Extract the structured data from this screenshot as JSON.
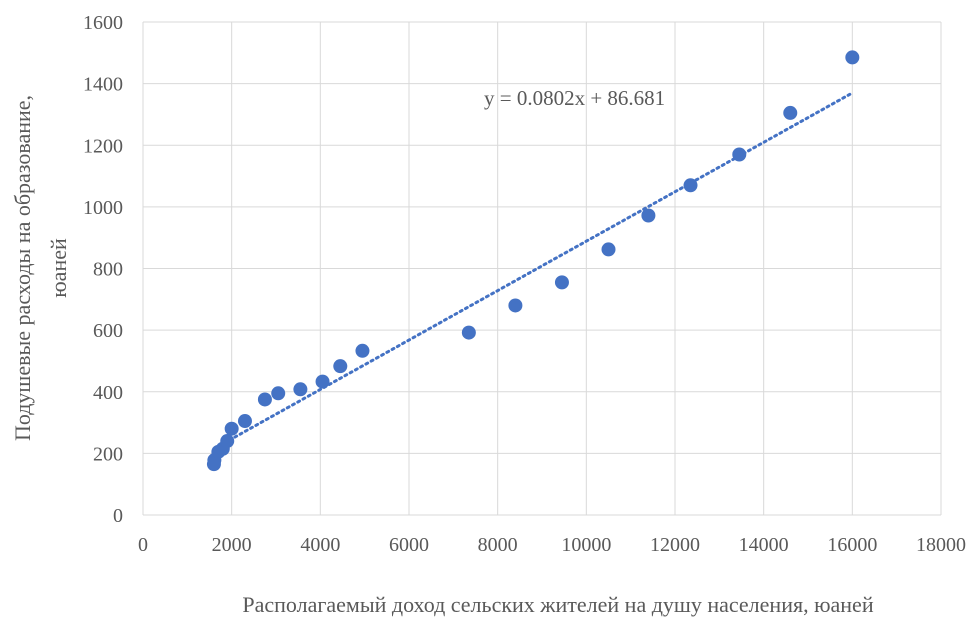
{
  "chart_data": {
    "type": "scatter",
    "title": "",
    "xlabel": "Располагаемый доход сельских жителей на душу населения, юаней",
    "ylabel_lines": [
      "Подушевые расходы на образование,",
      "юаней"
    ],
    "xlim": [
      0,
      18000
    ],
    "ylim": [
      0,
      1600
    ],
    "x_ticks": [
      0,
      2000,
      4000,
      6000,
      8000,
      10000,
      12000,
      14000,
      16000,
      18000
    ],
    "y_ticks": [
      0,
      200,
      400,
      600,
      800,
      1000,
      1200,
      1400,
      1600
    ],
    "grid": true,
    "legend": "none",
    "marker_color": "#4472C4",
    "trendline_color": "#4472C4",
    "series": [
      {
        "points": [
          {
            "x": 1600,
            "y": 165
          },
          {
            "x": 1610,
            "y": 178
          },
          {
            "x": 1700,
            "y": 205
          },
          {
            "x": 1800,
            "y": 215
          },
          {
            "x": 1900,
            "y": 240
          },
          {
            "x": 2000,
            "y": 280
          },
          {
            "x": 2300,
            "y": 305
          },
          {
            "x": 2750,
            "y": 375
          },
          {
            "x": 3050,
            "y": 395
          },
          {
            "x": 3550,
            "y": 408
          },
          {
            "x": 4050,
            "y": 433
          },
          {
            "x": 4450,
            "y": 483
          },
          {
            "x": 4950,
            "y": 533
          },
          {
            "x": 7350,
            "y": 592
          },
          {
            "x": 8400,
            "y": 680
          },
          {
            "x": 9450,
            "y": 755
          },
          {
            "x": 10500,
            "y": 862
          },
          {
            "x": 11400,
            "y": 972
          },
          {
            "x": 12350,
            "y": 1070
          },
          {
            "x": 13450,
            "y": 1170
          },
          {
            "x": 14600,
            "y": 1305
          },
          {
            "x": 16000,
            "y": 1485
          }
        ]
      }
    ],
    "trendline": {
      "equation": "y = 0.0802x + 86.681",
      "slope": 0.0802,
      "intercept": 86.681,
      "x_range": [
        1600,
        16000
      ]
    }
  }
}
